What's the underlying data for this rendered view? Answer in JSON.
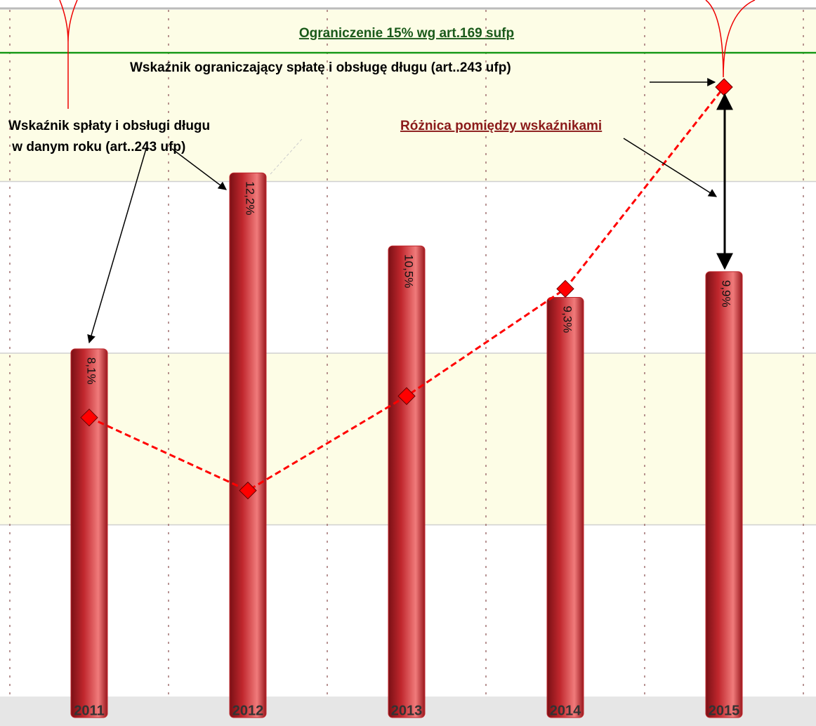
{
  "chart_data": {
    "type": "bar_line",
    "categories": [
      "2011",
      "2012",
      "2013",
      "2014",
      "2015"
    ],
    "series": [
      {
        "type": "bar",
        "color": "#c0272d",
        "values": [
          8.1,
          12.2,
          10.5,
          9.3,
          9.9
        ],
        "value_labels": [
          "8,1%",
          "12,2%",
          "10,5%",
          "9,3%",
          "9,9%"
        ]
      },
      {
        "type": "line",
        "color": "#ff0000",
        "values": [
          6.5,
          4.8,
          7.0,
          9.5,
          14.2
        ]
      }
    ],
    "ylim": [
      0,
      16
    ],
    "yticks": [
      4,
      8,
      12
    ],
    "grid": true,
    "limit_line": {
      "value": 15,
      "label": "Ograniczenie 15% wg art.169 sufp",
      "color": "#1a9a1a"
    },
    "annotations": {
      "limit_indicator": "Wskaźnik ograniczający spłatę i obsługę długu  (art..243 ufp)",
      "yearly_indicator": [
        "Wskaźnik  spłaty i obsługi długu",
        " w danym roku (art..243 ufp)"
      ],
      "difference": "Różnica pomiędzy wskaźnikami"
    }
  }
}
